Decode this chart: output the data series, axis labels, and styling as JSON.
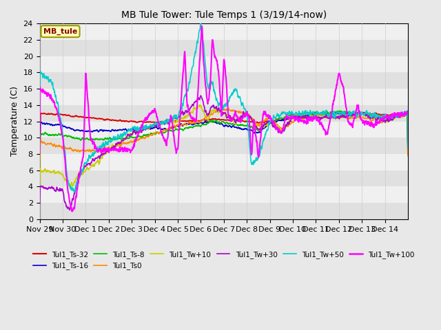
{
  "title": "MB Tule Tower: Tule Temps 1 (3/19/14-now)",
  "ylabel": "Temperature (C)",
  "ylim": [
    0,
    24
  ],
  "yticks": [
    0,
    2,
    4,
    6,
    8,
    10,
    12,
    14,
    16,
    18,
    20,
    22,
    24
  ],
  "xlabel_dates": [
    "Nov 29",
    "Nov 30",
    "Dec 1",
    "Dec 2",
    "Dec 3",
    "Dec 4",
    "Dec 5",
    "Dec 6",
    "Dec 7",
    "Dec 8",
    "Dec 9",
    "Dec 10",
    "Dec 11",
    "Dec 12",
    "Dec 13",
    "Dec 14"
  ],
  "legend_label": "MB_tule",
  "series": {
    "Tul1_Ts-32": {
      "color": "#dd0000",
      "lw": 1.3
    },
    "Tul1_Ts-16": {
      "color": "#0000cc",
      "lw": 1.2
    },
    "Tul1_Ts-8": {
      "color": "#00bb00",
      "lw": 1.2
    },
    "Tul1_Ts0": {
      "color": "#ff8800",
      "lw": 1.2
    },
    "Tul1_Tw+10": {
      "color": "#cccc00",
      "lw": 1.2
    },
    "Tul1_Tw+30": {
      "color": "#aa00cc",
      "lw": 1.2
    },
    "Tul1_Tw+50": {
      "color": "#00cccc",
      "lw": 1.2
    },
    "Tul1_Tw+100": {
      "color": "#ff00ff",
      "lw": 1.5
    }
  },
  "bg_color": "#e8e8e8",
  "plot_bg": "#f0f0f0"
}
